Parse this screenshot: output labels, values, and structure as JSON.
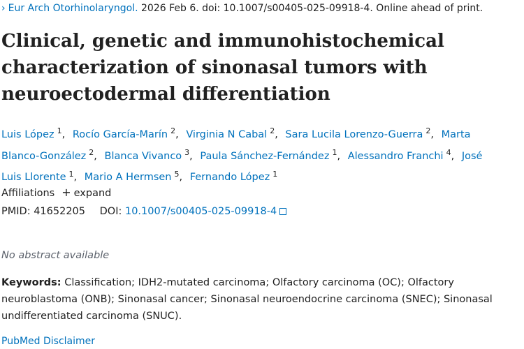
{
  "citation": {
    "journal": "Eur Arch Otorhinolaryngol.",
    "details": "2026 Feb 6. doi: 10.1007/s00405-025-09918-4. Online ahead of print."
  },
  "title": "Clinical, genetic and immunohistochemical characterization of sinonasal tumors with neuroectodermal differentiation",
  "authors": [
    {
      "name": "Luis López",
      "aff": "1"
    },
    {
      "name": "Rocío García-Marín",
      "aff": "2"
    },
    {
      "name": "Virginia N Cabal",
      "aff": "2"
    },
    {
      "name": "Sara Lucila Lorenzo-Guerra",
      "aff": "2"
    },
    {
      "name": "Marta Blanco-González",
      "aff": "2"
    },
    {
      "name": "Blanca Vivanco",
      "aff": "3"
    },
    {
      "name": "Paula Sánchez-Fernández",
      "aff": "1"
    },
    {
      "name": "Alessandro Franchi",
      "aff": "4"
    },
    {
      "name": "José Luis Llorente",
      "aff": "1"
    },
    {
      "name": "Mario A Hermsen",
      "aff": "5"
    },
    {
      "name": "Fernando López",
      "aff": "1"
    }
  ],
  "affiliations": {
    "label": "Affiliations",
    "icon": "+",
    "action": "expand"
  },
  "identifiers": {
    "pmid_label": "PMID:",
    "pmid": "41652205",
    "doi_label": "DOI:",
    "doi": "10.1007/s00405-025-09918-4"
  },
  "abstract": "No abstract available",
  "keywords": {
    "label": "Keywords:",
    "text": "Classification; IDH2-mutated carcinoma; Olfactory carcinoma (OC); Olfactory neuroblastoma (ONB); Sinonasal cancer; Sinonasal neuroendocrine carcinoma (SNEC); Sinonasal undifferentiated carcinoma (SNUC)."
  },
  "disclaimer": "PubMed Disclaimer"
}
